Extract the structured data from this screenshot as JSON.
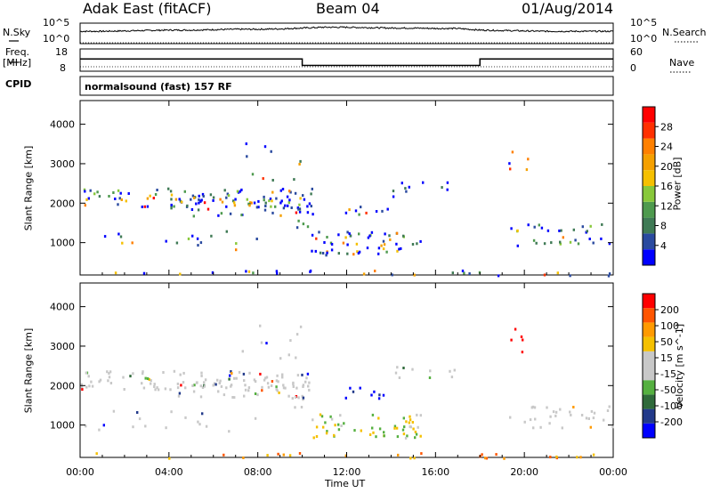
{
  "header": {
    "station": "Adak East (fitACF)",
    "beam": "Beam 04",
    "date": "01/Aug/2014"
  },
  "labels": {
    "nsky": "N.Sky",
    "nsearch": "N.Search",
    "freq": "Freq.",
    "mhz": "[MHz]",
    "nave": "Nave",
    "cpid": "CPID",
    "ten5_left": "10^5",
    "ten0_left": "10^0",
    "ten5_right": "10^5",
    "ten0_right": "10^0",
    "freq_top": "18",
    "freq_bottom": "8",
    "nave_top": "60",
    "nave_bottom": "0"
  },
  "cpid_text": "normalsound (fast) 157 RF",
  "colors": {
    "power": [
      "#0000ff",
      "#2a4a9f",
      "#3f7a55",
      "#4e9a4e",
      "#88c83a",
      "#f5c000",
      "#f5a000",
      "#ff8000",
      "#ff3000",
      "#ff0000"
    ],
    "velocity": [
      "#0000ff",
      "#223a8a",
      "#2f6a3a",
      "#55b040",
      "#c8c8c8",
      "#c8c8c8",
      "#f5c000",
      "#ff9a00",
      "#ff5500",
      "#ff0000"
    ],
    "line": "#000000",
    "noise_line": "#000000"
  },
  "chart_data": [
    {
      "type": "line",
      "name": "noise-panel",
      "x_range_hours": [
        0,
        24
      ],
      "sky_level_log": [
        3.0,
        3.0,
        3.1,
        3.2,
        3.3,
        3.3,
        3.4,
        3.5,
        3.5,
        3.6,
        3.8,
        4.0,
        4.0,
        3.9,
        3.8,
        3.8,
        3.7,
        3.7,
        3.3,
        3.2,
        3.1,
        3.0,
        3.0,
        3.0,
        3.0
      ],
      "ylabel_left": "N.Sky",
      "ylabel_right": "N.Search"
    },
    {
      "type": "line",
      "name": "frequency-panel",
      "freq_mhz_steps": [
        {
          "from": 0,
          "to": 10,
          "value": 13.5
        },
        {
          "from": 10,
          "to": 18,
          "value": 10.6
        },
        {
          "from": 18,
          "to": 24,
          "value": 13.5
        }
      ],
      "freq_range": [
        8,
        18
      ],
      "nave_range": [
        0,
        60
      ]
    },
    {
      "type": "heatmap",
      "name": "power",
      "title": "",
      "xlabel": "",
      "ylabel": "Slant Range [km]",
      "xlim": [
        0,
        24
      ],
      "ylim": [
        180,
        4600
      ],
      "x_ticks": [
        "00:00",
        "04:00",
        "08:00",
        "12:00",
        "16:00",
        "20:00",
        "00:00"
      ],
      "y_ticks": [
        1000,
        2000,
        3000,
        4000
      ],
      "colorbar_label": "Power [dB]",
      "colorbar_ticks": [
        "4",
        "8",
        "12",
        "16",
        "20",
        "24",
        "28"
      ],
      "colorbar_range": [
        0,
        30
      ]
    },
    {
      "type": "heatmap",
      "name": "velocity",
      "title": "",
      "xlabel": "Time UT",
      "ylabel": "Slant Range [km]",
      "xlim": [
        0,
        24
      ],
      "ylim": [
        180,
        4600
      ],
      "x_ticks": [
        "00:00",
        "04:00",
        "08:00",
        "12:00",
        "16:00",
        "20:00",
        "00:00"
      ],
      "y_ticks": [
        1000,
        2000,
        3000,
        4000
      ],
      "colorbar_label": "Velocity [m s^-1]",
      "colorbar_ticks": [
        "200",
        "100",
        "50",
        "15",
        "-15",
        "-50",
        "-100",
        "-200"
      ],
      "colorbar_range": [
        -250,
        250
      ]
    }
  ]
}
